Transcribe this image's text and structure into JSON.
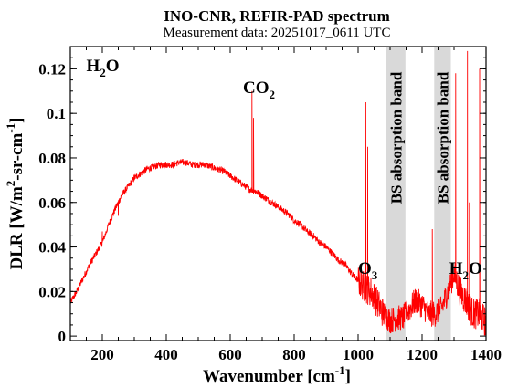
{
  "chart_data": {
    "type": "line",
    "title": "INO-CNR, REFIR-PAD spectrum",
    "subtitle": "Measurement data: 20251017_0611 UTC",
    "xlabel": {
      "base": "Wavenumber [cm",
      "sup": "-1",
      "tail": "]"
    },
    "ylabel": {
      "p1": "DLR [W/m",
      "s1": "2",
      "p2": "-sr-cm",
      "s2": "-1",
      "p3": "]"
    },
    "xlim": [
      100,
      1400
    ],
    "ylim": [
      -0.002,
      0.13
    ],
    "xticks": [
      200,
      400,
      600,
      800,
      1000,
      1200,
      1400
    ],
    "yticks": [
      0,
      0.02,
      0.04,
      0.06,
      0.08,
      0.1,
      0.12
    ],
    "grid": false,
    "line_color": "#ff0000",
    "shaded_bands": [
      {
        "x0": 1088,
        "x1": 1148,
        "label": "BS absorption band",
        "color": "#d9d9d9"
      },
      {
        "x0": 1238,
        "x1": 1290,
        "label": "BS absorption band",
        "color": "#d9d9d9"
      }
    ],
    "annotations": [
      {
        "base": "H",
        "sub": "2",
        "tail": "O",
        "x": 150,
        "y": 0.119
      },
      {
        "base": "CO",
        "sub": "2",
        "tail": "",
        "x": 640,
        "y": 0.109
      },
      {
        "base": "O",
        "sub": "3",
        "tail": "",
        "x": 1000,
        "y": 0.028
      },
      {
        "base": "H",
        "sub": "2",
        "tail": "O",
        "x": 1285,
        "y": 0.028
      }
    ],
    "series": [
      {
        "x": [
          100,
          120,
          140,
          160,
          180,
          200,
          220,
          240,
          260,
          280,
          300,
          320,
          340,
          360,
          380,
          400,
          420,
          440,
          460,
          480,
          500,
          520,
          540,
          560,
          580,
          600,
          620,
          640,
          660,
          680,
          700,
          720,
          740,
          760,
          780,
          800,
          820,
          840,
          860,
          880,
          900,
          920,
          940,
          960,
          980,
          1000,
          1020,
          1040,
          1060,
          1080,
          1100,
          1120,
          1140,
          1160,
          1180,
          1200,
          1220,
          1240,
          1260,
          1280,
          1300,
          1320,
          1340,
          1360,
          1380,
          1400
        ],
        "y": [
          0.015,
          0.02,
          0.026,
          0.032,
          0.037,
          0.042,
          0.05,
          0.057,
          0.063,
          0.067,
          0.071,
          0.073,
          0.075,
          0.076,
          0.077,
          0.077,
          0.077,
          0.078,
          0.078,
          0.077,
          0.077,
          0.077,
          0.076,
          0.075,
          0.074,
          0.072,
          0.07,
          0.068,
          0.066,
          0.065,
          0.063,
          0.061,
          0.059,
          0.057,
          0.055,
          0.052,
          0.05,
          0.047,
          0.045,
          0.042,
          0.04,
          0.037,
          0.034,
          0.032,
          0.028,
          0.025,
          0.022,
          0.02,
          0.015,
          0.01,
          0.007,
          0.008,
          0.008,
          0.012,
          0.016,
          0.014,
          0.01,
          0.01,
          0.012,
          0.02,
          0.028,
          0.02,
          0.015,
          0.01,
          0.01,
          0.006
        ],
        "spikes": [
          {
            "x": 200,
            "y": 0.047
          },
          {
            "x": 250,
            "y": 0.054
          },
          {
            "x": 668,
            "y": 0.11
          },
          {
            "x": 673,
            "y": 0.098
          },
          {
            "x": 1024,
            "y": 0.105
          },
          {
            "x": 1030,
            "y": 0.085
          },
          {
            "x": 1232,
            "y": 0.048
          },
          {
            "x": 1305,
            "y": 0.118
          },
          {
            "x": 1342,
            "y": 0.128
          },
          {
            "x": 1348,
            "y": 0.06
          },
          {
            "x": 1380,
            "y": 0.12
          }
        ]
      }
    ]
  }
}
